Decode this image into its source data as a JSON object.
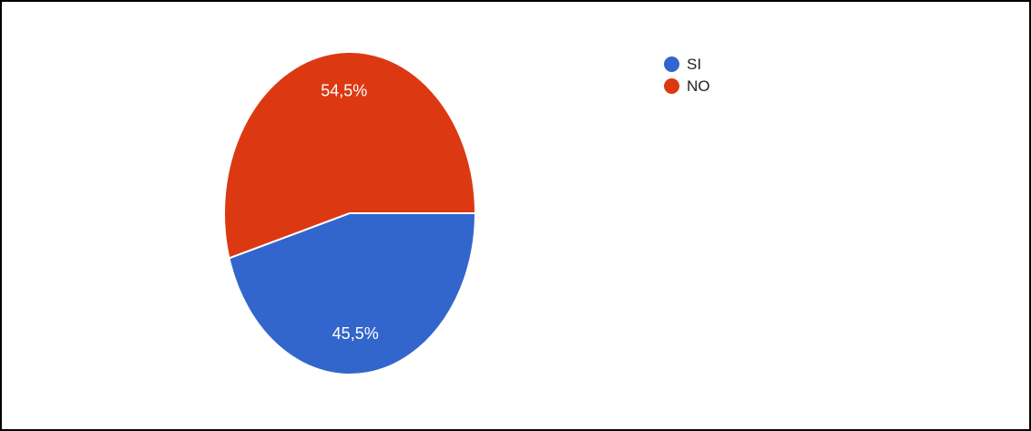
{
  "chart_data": {
    "type": "pie",
    "categories": [
      "SI",
      "NO"
    ],
    "values": [
      45.5,
      54.5
    ],
    "data_labels": [
      "45,5%",
      "54,5%"
    ],
    "colors": [
      "#3366cc",
      "#dc3912"
    ],
    "legend": {
      "placement": "top-right",
      "entries": [
        "SI",
        "NO"
      ]
    }
  }
}
